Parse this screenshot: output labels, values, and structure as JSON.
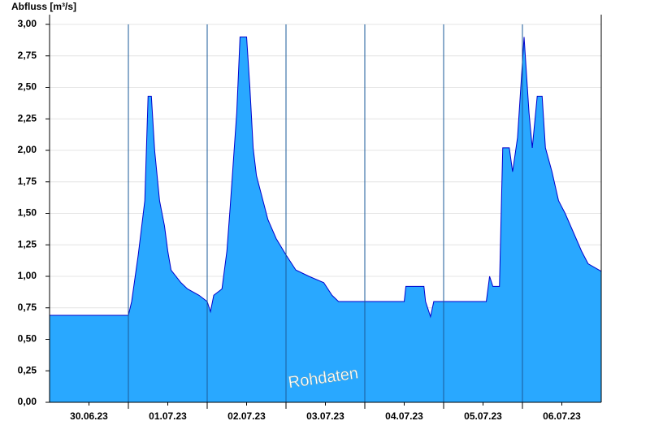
{
  "chart_data": {
    "type": "area",
    "title": "Abfluss [m³/s]",
    "watermark": "Rohdaten",
    "x": [
      0,
      24,
      25,
      27,
      29,
      30,
      31,
      32,
      33.5,
      35,
      36,
      37,
      40,
      42,
      45.5,
      48,
      49,
      50,
      52.5,
      54,
      55,
      57,
      58,
      60,
      61,
      62,
      63,
      65,
      66.5,
      69,
      72,
      75,
      79,
      83.5,
      86,
      88,
      108,
      108.5,
      114,
      114.5,
      116,
      117,
      133,
      134,
      135,
      137,
      138,
      140,
      141,
      142.5,
      144.5,
      146,
      147,
      148.5,
      150,
      151,
      153,
      155,
      157,
      159.5,
      162,
      164,
      168
    ],
    "series": [
      {
        "name": "Abfluss",
        "color": "#29a8ff",
        "line_color": "#0000cc",
        "values": [
          0.69,
          0.69,
          0.8,
          1.17,
          1.6,
          2.43,
          2.43,
          2.0,
          1.6,
          1.4,
          1.2,
          1.05,
          0.95,
          0.9,
          0.85,
          0.8,
          0.72,
          0.85,
          0.9,
          1.2,
          1.55,
          2.3,
          2.9,
          2.9,
          2.5,
          2.02,
          1.8,
          1.6,
          1.45,
          1.3,
          1.17,
          1.05,
          1.0,
          0.95,
          0.85,
          0.8,
          0.8,
          0.92,
          0.92,
          0.8,
          0.68,
          0.8,
          0.8,
          1.0,
          0.92,
          0.92,
          2.02,
          2.02,
          1.83,
          2.1,
          2.9,
          2.3,
          2.02,
          2.43,
          2.43,
          2.02,
          1.83,
          1.6,
          1.5,
          1.35,
          1.2,
          1.1,
          1.04
        ]
      }
    ],
    "xlim": [
      0,
      168
    ],
    "xticks": [
      {
        "value": 12,
        "label": "30.06.23"
      },
      {
        "value": 36,
        "label": "01.07.23"
      },
      {
        "value": 60,
        "label": "02.07.23"
      },
      {
        "value": 84,
        "label": "03.07.23"
      },
      {
        "value": 108,
        "label": "04.07.23"
      },
      {
        "value": 132,
        "label": "05.07.23"
      },
      {
        "value": 156,
        "label": "06.07.23"
      }
    ],
    "xgrid": [
      24,
      48,
      72,
      96,
      120,
      144
    ],
    "ylim": [
      0,
      3
    ],
    "yticks": [
      {
        "value": 0,
        "label": "0,00"
      },
      {
        "value": 0.25,
        "label": "0,25"
      },
      {
        "value": 0.5,
        "label": "0,50"
      },
      {
        "value": 0.75,
        "label": "0,75"
      },
      {
        "value": 1,
        "label": "1,00"
      },
      {
        "value": 1.25,
        "label": "1,25"
      },
      {
        "value": 1.5,
        "label": "1,50"
      },
      {
        "value": 1.75,
        "label": "1,75"
      },
      {
        "value": 2,
        "label": "2,00"
      },
      {
        "value": 2.25,
        "label": "2,25"
      },
      {
        "value": 2.5,
        "label": "2,50"
      },
      {
        "value": 2.75,
        "label": "2,75"
      },
      {
        "value": 3,
        "label": "3,00"
      }
    ],
    "grid": true
  }
}
